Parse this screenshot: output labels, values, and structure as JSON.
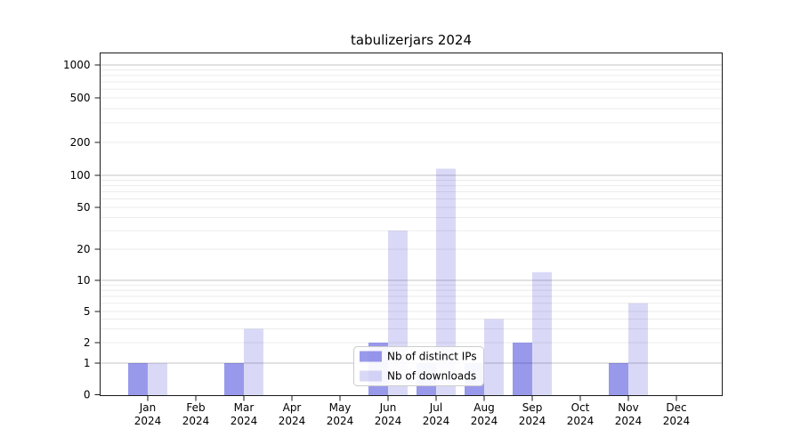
{
  "chart_data": {
    "type": "bar",
    "title": "tabulizerjars 2024",
    "categories": [
      "Jan 2024",
      "Feb 2024",
      "Mar 2024",
      "Apr 2024",
      "May 2024",
      "Jun 2024",
      "Jul 2024",
      "Aug 2024",
      "Sep 2024",
      "Oct 2024",
      "Nov 2024",
      "Dec 2024"
    ],
    "x_tick_months": [
      "Jan",
      "Feb",
      "Mar",
      "Apr",
      "May",
      "Jun",
      "Jul",
      "Aug",
      "Sep",
      "Oct",
      "Nov",
      "Dec"
    ],
    "x_tick_year": "2024",
    "series": [
      {
        "name": "Nb of distinct IPs",
        "base_color": "#0000cc",
        "alpha": 0.4,
        "visible_color": "#9999eb",
        "values": [
          1,
          0,
          1,
          0,
          0,
          2,
          1,
          1,
          2,
          0,
          1,
          0
        ]
      },
      {
        "name": "Nb of downloads",
        "base_color": "#0000cc",
        "alpha": 0.15,
        "visible_color": "#d9d9f7",
        "values": [
          1,
          0,
          3,
          0,
          0,
          30,
          115,
          4,
          12,
          0,
          6,
          0
        ]
      }
    ],
    "yticks": [
      0,
      1,
      2,
      5,
      10,
      20,
      50,
      100,
      200,
      500,
      1000
    ],
    "y_minor_gridline_values": [
      3,
      4,
      6,
      7,
      8,
      9,
      30,
      40,
      60,
      70,
      80,
      90,
      300,
      400,
      600,
      700,
      800,
      900
    ],
    "xlabel": "",
    "ylabel": "",
    "y_scale": "log-like above 1 with linear 0-1 segment",
    "ylim": [
      0,
      1300
    ],
    "grid": "horizontal, major on powers of 10, faint minors elsewhere",
    "legend": {
      "position": "lower center inside plot",
      "entries": [
        "Nb of distinct IPs",
        "Nb of downloads"
      ]
    }
  },
  "colors": {
    "bar_base": "#0000cc",
    "bar_dark_visible": "#9999eb",
    "bar_light_visible": "#d9d9f7",
    "grid_major": "#c3c3c3",
    "grid_minor": "#ebebeb",
    "axis_frame": "#1a1a1a",
    "legend_border": "#cccccc",
    "legend_bg": "#ffffff",
    "text": "#000000",
    "background": "#ffffff"
  }
}
